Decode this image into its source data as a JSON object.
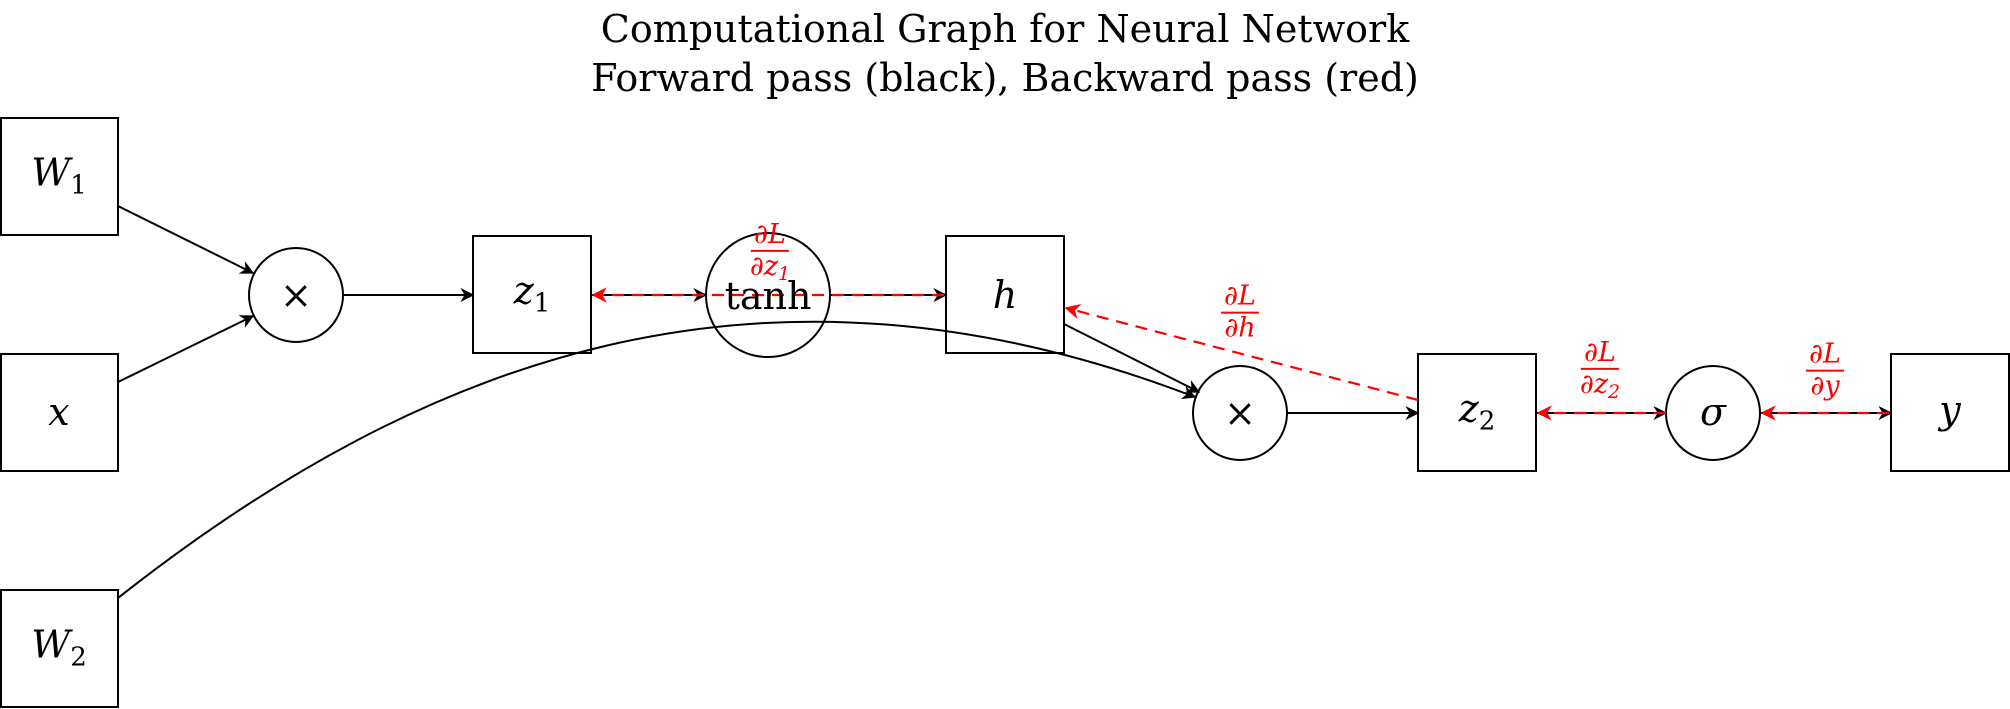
{
  "title": {
    "line1": "Computational Graph for Neural Network",
    "line2": "Forward pass (black), Backward pass (red)"
  },
  "nodes": {
    "W1": {
      "main": "W",
      "sub": "1",
      "shape": "square"
    },
    "x": {
      "main": "x",
      "shape": "square"
    },
    "W2": {
      "main": "W",
      "sub": "2",
      "shape": "square"
    },
    "mul1": {
      "main": "×",
      "shape": "circle"
    },
    "z1": {
      "main": "z",
      "sub": "1",
      "shape": "square"
    },
    "tanh": {
      "main": "tanh",
      "shape": "circle"
    },
    "h": {
      "main": "h",
      "shape": "square"
    },
    "mul2": {
      "main": "×",
      "shape": "circle"
    },
    "z2": {
      "main": "z",
      "sub": "2",
      "shape": "square"
    },
    "sigma": {
      "main": "σ",
      "shape": "circle"
    },
    "y": {
      "main": "y",
      "shape": "square"
    }
  },
  "gradients": {
    "dL_dz1": {
      "num": "∂L",
      "den": "∂z",
      "den_sub": "1"
    },
    "dL_dh": {
      "num": "∂L",
      "den": "∂h"
    },
    "dL_dz2": {
      "num": "∂L",
      "den": "∂z",
      "den_sub": "2"
    },
    "dL_dy": {
      "num": "∂L",
      "den": "∂y"
    }
  },
  "colors": {
    "forward": "#000000",
    "backward": "#ff0000"
  }
}
